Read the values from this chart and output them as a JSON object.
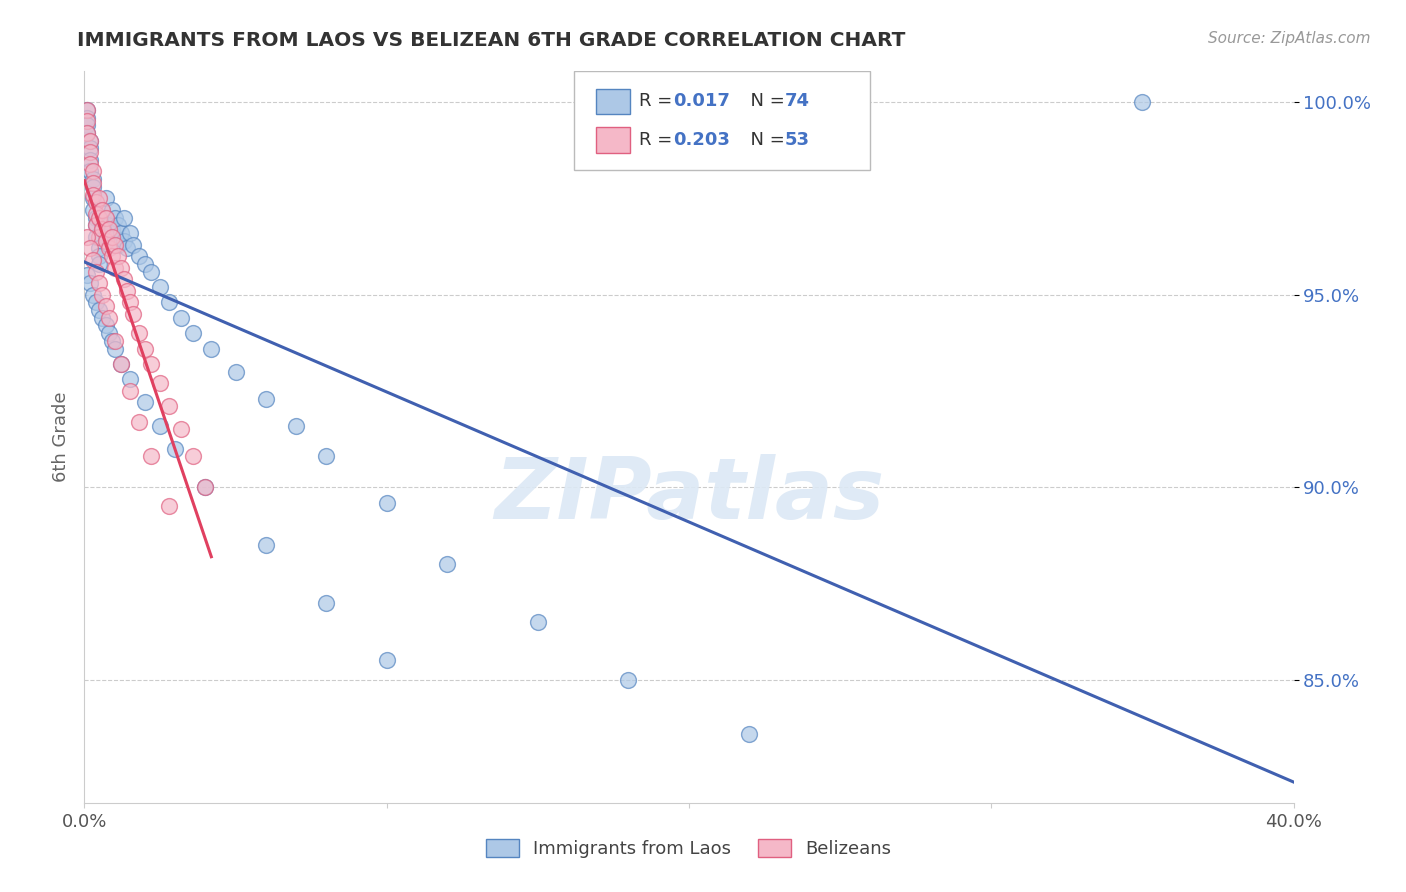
{
  "title": "IMMIGRANTS FROM LAOS VS BELIZEAN 6TH GRADE CORRELATION CHART",
  "source": "Source: ZipAtlas.com",
  "xlabel_blue": "Immigrants from Laos",
  "xlabel_pink": "Belizeans",
  "ylabel": "6th Grade",
  "x_min": 0.0,
  "x_max": 0.4,
  "y_min": 0.818,
  "y_max": 1.008,
  "y_ticks": [
    0.85,
    0.9,
    0.95,
    1.0
  ],
  "y_tick_labels": [
    "85.0%",
    "90.0%",
    "95.0%",
    "100.0%"
  ],
  "x_tick_labels": [
    "0.0%",
    "",
    "",
    "",
    "40.0%"
  ],
  "legend_R_blue": "0.017",
  "legend_N_blue": "74",
  "legend_R_pink": "0.203",
  "legend_N_pink": "53",
  "blue_fill": "#adc8e6",
  "blue_edge": "#5585c0",
  "pink_fill": "#f5b8c8",
  "pink_edge": "#e06080",
  "blue_line_color": "#4060b0",
  "pink_line_color": "#e04060",
  "label_color_blue": "#4472c4",
  "grid_color": "#cccccc",
  "title_color": "#333333",
  "source_color": "#999999",
  "ylabel_color": "#666666",
  "watermark_color": "#dce8f5",
  "blue_x": [
    0.001,
    0.001,
    0.001,
    0.001,
    0.002,
    0.002,
    0.002,
    0.002,
    0.003,
    0.003,
    0.003,
    0.003,
    0.004,
    0.004,
    0.004,
    0.005,
    0.005,
    0.005,
    0.006,
    0.006,
    0.007,
    0.007,
    0.007,
    0.008,
    0.008,
    0.009,
    0.009,
    0.01,
    0.01,
    0.011,
    0.011,
    0.012,
    0.013,
    0.013,
    0.014,
    0.015,
    0.016,
    0.018,
    0.02,
    0.022,
    0.025,
    0.028,
    0.032,
    0.036,
    0.042,
    0.05,
    0.06,
    0.07,
    0.08,
    0.1,
    0.12,
    0.15,
    0.18,
    0.22,
    0.35,
    0.001,
    0.002,
    0.003,
    0.004,
    0.005,
    0.006,
    0.007,
    0.008,
    0.009,
    0.01,
    0.012,
    0.015,
    0.02,
    0.025,
    0.03,
    0.04,
    0.06,
    0.08,
    0.1
  ],
  "blue_y": [
    0.998,
    0.996,
    0.994,
    0.992,
    0.99,
    0.988,
    0.985,
    0.982,
    0.98,
    0.978,
    0.975,
    0.972,
    0.97,
    0.968,
    0.965,
    0.962,
    0.96,
    0.958,
    0.972,
    0.968,
    0.975,
    0.97,
    0.965,
    0.968,
    0.963,
    0.972,
    0.967,
    0.97,
    0.965,
    0.968,
    0.963,
    0.966,
    0.97,
    0.964,
    0.962,
    0.966,
    0.963,
    0.96,
    0.958,
    0.956,
    0.952,
    0.948,
    0.944,
    0.94,
    0.936,
    0.93,
    0.923,
    0.916,
    0.908,
    0.896,
    0.88,
    0.865,
    0.85,
    0.836,
    1.0,
    0.955,
    0.953,
    0.95,
    0.948,
    0.946,
    0.944,
    0.942,
    0.94,
    0.938,
    0.936,
    0.932,
    0.928,
    0.922,
    0.916,
    0.91,
    0.9,
    0.885,
    0.87,
    0.855
  ],
  "pink_x": [
    0.001,
    0.001,
    0.001,
    0.002,
    0.002,
    0.002,
    0.003,
    0.003,
    0.003,
    0.004,
    0.004,
    0.004,
    0.005,
    0.005,
    0.005,
    0.006,
    0.006,
    0.007,
    0.007,
    0.008,
    0.008,
    0.009,
    0.009,
    0.01,
    0.01,
    0.011,
    0.012,
    0.013,
    0.014,
    0.015,
    0.016,
    0.018,
    0.02,
    0.022,
    0.025,
    0.028,
    0.032,
    0.036,
    0.04,
    0.001,
    0.002,
    0.003,
    0.004,
    0.005,
    0.006,
    0.007,
    0.008,
    0.01,
    0.012,
    0.015,
    0.018,
    0.022,
    0.028
  ],
  "pink_y": [
    0.998,
    0.995,
    0.992,
    0.99,
    0.987,
    0.984,
    0.982,
    0.979,
    0.976,
    0.974,
    0.971,
    0.968,
    0.975,
    0.97,
    0.965,
    0.972,
    0.967,
    0.97,
    0.964,
    0.967,
    0.962,
    0.965,
    0.96,
    0.963,
    0.957,
    0.96,
    0.957,
    0.954,
    0.951,
    0.948,
    0.945,
    0.94,
    0.936,
    0.932,
    0.927,
    0.921,
    0.915,
    0.908,
    0.9,
    0.965,
    0.962,
    0.959,
    0.956,
    0.953,
    0.95,
    0.947,
    0.944,
    0.938,
    0.932,
    0.925,
    0.917,
    0.908,
    0.895
  ]
}
